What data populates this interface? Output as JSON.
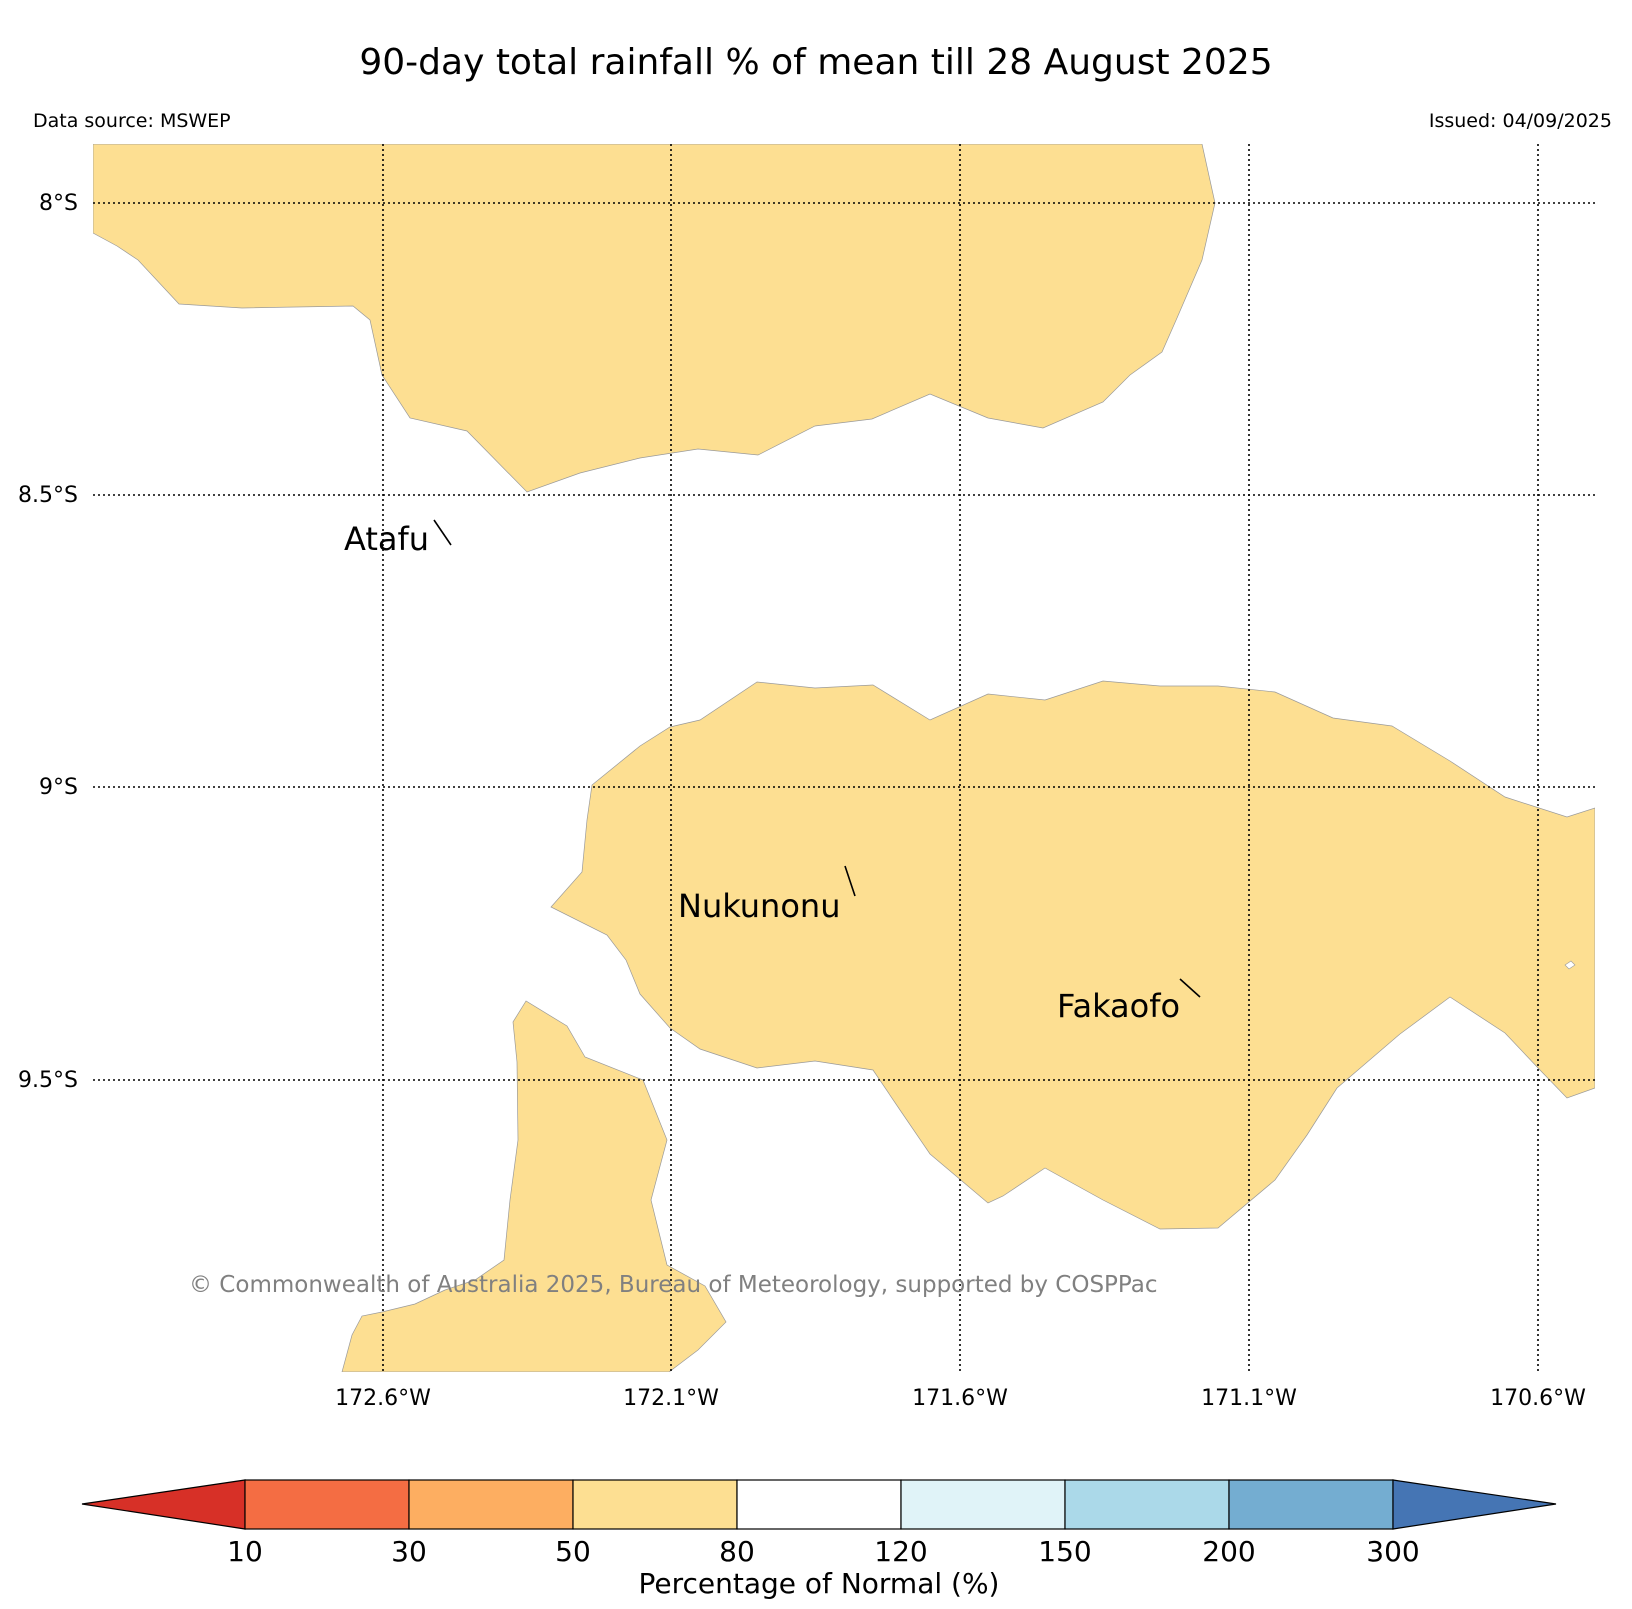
{
  "title": "90-day total rainfall % of mean till 28 August 2025",
  "data_source": "Data source: MSWEP",
  "issued": "Issued: 04/09/2025",
  "map": {
    "lat_labels": [
      "8°S",
      "8.5°S",
      "9°S",
      "9.5°S"
    ],
    "lon_labels": [
      "172.6°W",
      "172.1°W",
      "171.6°W",
      "171.1°W",
      "170.6°W"
    ],
    "places": [
      "Atafu",
      "Nukunonu",
      "Fakaofo"
    ],
    "copyright": "© Commonwealth of Australia 2025, Bureau of Meteorology, supported by COSPPac",
    "fill_color": "#fddf92",
    "fill_category": "50–80"
  },
  "colorbar": {
    "ticks": [
      "10",
      "30",
      "50",
      "80",
      "120",
      "150",
      "200",
      "300"
    ],
    "colors": [
      "#d73027",
      "#f46d43",
      "#fdae61",
      "#fddf92",
      "#ffffff",
      "#e0f3f8",
      "#abd9e9",
      "#74add1",
      "#4575b4"
    ],
    "label": "Percentage of Normal (%)"
  }
}
